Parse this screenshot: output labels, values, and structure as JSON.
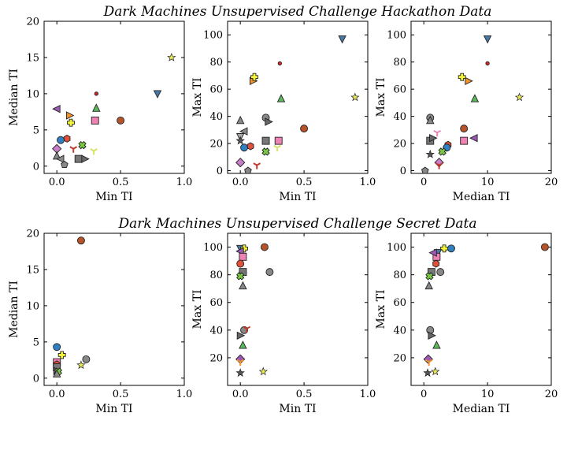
{
  "chart_data": [
    {
      "id": "hack-median-vs-min",
      "type": "scatter",
      "group_title": "Dark Machines Unsupervised Challenge Hackathon Data",
      "xlabel": "Min TI",
      "ylabel": "Median TI",
      "xlim": [
        -0.1,
        1.0
      ],
      "ylim": [
        -1,
        20
      ],
      "xticks": [
        0.0,
        0.5,
        1.0
      ],
      "xticklabels": [
        "0.0",
        "0.5",
        "1.0"
      ],
      "yticks": [
        0,
        5,
        10,
        15,
        20
      ],
      "yticklabels": [
        "0",
        "5",
        "10",
        "15",
        "20"
      ],
      "points": [
        {
          "x": 0.79,
          "y": 10.0,
          "marker": "tri-down",
          "color": "#4878a6"
        },
        {
          "x": 0.9,
          "y": 15.0,
          "marker": "star",
          "color": "#e8e85a"
        },
        {
          "x": 0.31,
          "y": 10.0,
          "marker": "circle-sm",
          "color": "#d62728"
        },
        {
          "x": 0.5,
          "y": 6.3,
          "marker": "circle",
          "color": "#b5532a"
        },
        {
          "x": 0.31,
          "y": 8.0,
          "marker": "tri-up",
          "color": "#5cb85c"
        },
        {
          "x": 0.3,
          "y": 6.3,
          "marker": "square",
          "color": "#ee82b4"
        },
        {
          "x": 0.0,
          "y": 7.9,
          "marker": "tri-left",
          "color": "#9b59b6"
        },
        {
          "x": 0.1,
          "y": 7.0,
          "marker": "tri-right",
          "color": "#f0932b"
        },
        {
          "x": 0.11,
          "y": 6.0,
          "marker": "plus",
          "color": "#f5f53c"
        },
        {
          "x": 0.08,
          "y": 3.8,
          "marker": "hexagon",
          "color": "#e0503a"
        },
        {
          "x": 0.03,
          "y": 3.6,
          "marker": "circle",
          "color": "#2f7fc1"
        },
        {
          "x": 0.0,
          "y": 2.4,
          "marker": "diamond",
          "color": "#c77dc7"
        },
        {
          "x": 0.2,
          "y": 2.9,
          "marker": "x",
          "color": "#7ac943"
        },
        {
          "x": 0.13,
          "y": 2.4,
          "marker": "tri-y",
          "color": "#c0392b"
        },
        {
          "x": 0.29,
          "y": 2.1,
          "marker": "tri-y",
          "color": "#d8e06a"
        },
        {
          "x": 0.0,
          "y": 1.4,
          "marker": "tri-up",
          "color": "#888888"
        },
        {
          "x": 0.03,
          "y": 1.0,
          "marker": "tri-left",
          "color": "#888888"
        },
        {
          "x": 0.17,
          "y": 1.0,
          "marker": "square",
          "color": "#777777"
        },
        {
          "x": 0.22,
          "y": 1.0,
          "marker": "tri-right",
          "color": "#666666"
        },
        {
          "x": 0.06,
          "y": 0.2,
          "marker": "pentagon",
          "color": "#888888"
        }
      ]
    },
    {
      "id": "hack-max-vs-min",
      "type": "scatter",
      "xlabel": "Min TI",
      "ylabel": "Max TI",
      "xlim": [
        -0.1,
        1.0
      ],
      "ylim": [
        -2,
        110
      ],
      "xticks": [
        0.0,
        0.5,
        1.0
      ],
      "xticklabels": [
        "0.0",
        "0.5",
        "1.0"
      ],
      "yticks": [
        0,
        20,
        40,
        60,
        80,
        100
      ],
      "yticklabels": [
        "0",
        "20",
        "40",
        "60",
        "80",
        "100"
      ],
      "points": [
        {
          "x": 0.8,
          "y": 97,
          "marker": "tri-down",
          "color": "#4878a6"
        },
        {
          "x": 0.9,
          "y": 54,
          "marker": "star",
          "color": "#e8e85a"
        },
        {
          "x": 0.31,
          "y": 79,
          "marker": "circle-sm",
          "color": "#d62728"
        },
        {
          "x": 0.5,
          "y": 31,
          "marker": "circle",
          "color": "#b5532a"
        },
        {
          "x": 0.32,
          "y": 53,
          "marker": "tri-up",
          "color": "#5cb85c"
        },
        {
          "x": 0.3,
          "y": 22,
          "marker": "square",
          "color": "#ee82b4"
        },
        {
          "x": 0.1,
          "y": 66,
          "marker": "tri-right",
          "color": "#f0932b"
        },
        {
          "x": 0.11,
          "y": 69,
          "marker": "plus",
          "color": "#f5f53c"
        },
        {
          "x": 0.2,
          "y": 39,
          "marker": "circle",
          "color": "#888888"
        },
        {
          "x": 0.2,
          "y": 22,
          "marker": "square",
          "color": "#777777"
        },
        {
          "x": 0.22,
          "y": 36,
          "marker": "tri-right",
          "color": "#666666"
        },
        {
          "x": 0.0,
          "y": 37,
          "marker": "tri-up",
          "color": "#888888"
        },
        {
          "x": 0.03,
          "y": 29,
          "marker": "tri-left",
          "color": "#888888"
        },
        {
          "x": 0.0,
          "y": 25,
          "marker": "tri-down",
          "color": "#aaaaaa"
        },
        {
          "x": 0.0,
          "y": 22,
          "marker": "star",
          "color": "#555555"
        },
        {
          "x": 0.08,
          "y": 18,
          "marker": "hexagon",
          "color": "#e0503a"
        },
        {
          "x": 0.03,
          "y": 17,
          "marker": "circle",
          "color": "#2f7fc1"
        },
        {
          "x": 0.2,
          "y": 14,
          "marker": "x",
          "color": "#7ac943"
        },
        {
          "x": 0.29,
          "y": 17,
          "marker": "tri-y",
          "color": "#d8e06a"
        },
        {
          "x": 0.0,
          "y": 6,
          "marker": "diamond",
          "color": "#c77dc7"
        },
        {
          "x": 0.13,
          "y": 4,
          "marker": "tri-y",
          "color": "#c0392b"
        },
        {
          "x": 0.06,
          "y": 0,
          "marker": "pentagon",
          "color": "#888888"
        }
      ]
    },
    {
      "id": "hack-max-vs-median",
      "type": "scatter",
      "xlabel": "Median TI",
      "ylabel": "Max TI",
      "xlim": [
        -2,
        20
      ],
      "ylim": [
        -2,
        110
      ],
      "xticks": [
        0,
        10,
        20
      ],
      "xticklabels": [
        "0",
        "10",
        "20"
      ],
      "yticks": [
        0,
        20,
        40,
        60,
        80,
        100
      ],
      "yticklabels": [
        "0",
        "20",
        "40",
        "60",
        "80",
        "100"
      ],
      "points": [
        {
          "x": 10.0,
          "y": 97,
          "marker": "tri-down",
          "color": "#4878a6"
        },
        {
          "x": 15.0,
          "y": 54,
          "marker": "star",
          "color": "#e8e85a"
        },
        {
          "x": 10.0,
          "y": 79,
          "marker": "circle-sm",
          "color": "#d62728"
        },
        {
          "x": 6.3,
          "y": 31,
          "marker": "circle",
          "color": "#b5532a"
        },
        {
          "x": 8.0,
          "y": 53,
          "marker": "tri-up",
          "color": "#5cb85c"
        },
        {
          "x": 6.3,
          "y": 22,
          "marker": "square",
          "color": "#ee82b4"
        },
        {
          "x": 7.9,
          "y": 24,
          "marker": "tri-left",
          "color": "#9b59b6"
        },
        {
          "x": 7.0,
          "y": 66,
          "marker": "tri-right",
          "color": "#f0932b"
        },
        {
          "x": 6.0,
          "y": 69,
          "marker": "plus",
          "color": "#f5f53c"
        },
        {
          "x": 3.8,
          "y": 19,
          "marker": "hexagon",
          "color": "#e0503a"
        },
        {
          "x": 3.6,
          "y": 17,
          "marker": "circle",
          "color": "#2f7fc1"
        },
        {
          "x": 1.0,
          "y": 39,
          "marker": "circle",
          "color": "#888888"
        },
        {
          "x": 1.0,
          "y": 37,
          "marker": "tri-up",
          "color": "#888888"
        },
        {
          "x": 1.0,
          "y": 22,
          "marker": "square",
          "color": "#777777"
        },
        {
          "x": 1.4,
          "y": 24,
          "marker": "tri-right",
          "color": "#666666"
        },
        {
          "x": 2.1,
          "y": 28,
          "marker": "tri-y",
          "color": "#ee82b4"
        },
        {
          "x": 1.0,
          "y": 12,
          "marker": "star",
          "color": "#555555"
        },
        {
          "x": 2.4,
          "y": 6,
          "marker": "diamond",
          "color": "#c77dc7"
        },
        {
          "x": 2.4,
          "y": 4,
          "marker": "tri-y",
          "color": "#c0392b"
        },
        {
          "x": 2.9,
          "y": 14,
          "marker": "x",
          "color": "#7ac943"
        },
        {
          "x": 0.2,
          "y": 0,
          "marker": "pentagon",
          "color": "#888888"
        }
      ]
    },
    {
      "id": "secret-median-vs-min",
      "type": "scatter",
      "group_title": "Dark Machines Unsupervised Challenge Secret Data",
      "xlabel": "Min TI",
      "ylabel": "Median TI",
      "xlim": [
        -0.1,
        1.0
      ],
      "ylim": [
        -1,
        20
      ],
      "xticks": [
        0.0,
        0.5,
        1.0
      ],
      "xticklabels": [
        "0.0",
        "0.5",
        "1.0"
      ],
      "yticks": [
        0,
        5,
        10,
        15,
        20
      ],
      "yticklabels": [
        "0",
        "5",
        "10",
        "15",
        "20"
      ],
      "points": [
        {
          "x": 0.19,
          "y": 19.0,
          "marker": "circle",
          "color": "#b5532a"
        },
        {
          "x": 0.0,
          "y": 4.3,
          "marker": "circle",
          "color": "#2f7fc1"
        },
        {
          "x": 0.04,
          "y": 3.2,
          "marker": "plus",
          "color": "#f5f53c"
        },
        {
          "x": 0.23,
          "y": 2.6,
          "marker": "circle",
          "color": "#888888"
        },
        {
          "x": 0.19,
          "y": 1.8,
          "marker": "star",
          "color": "#e8e85a"
        },
        {
          "x": 0.0,
          "y": 2.2,
          "marker": "square",
          "color": "#ee82b4"
        },
        {
          "x": 0.0,
          "y": 1.9,
          "marker": "hexagon",
          "color": "#e0503a"
        },
        {
          "x": 0.0,
          "y": 1.5,
          "marker": "square",
          "color": "#777777"
        },
        {
          "x": 0.0,
          "y": 1.0,
          "marker": "tri-right",
          "color": "#666666"
        },
        {
          "x": 0.01,
          "y": 0.9,
          "marker": "x",
          "color": "#7ac943"
        },
        {
          "x": 0.0,
          "y": 0.6,
          "marker": "tri-up",
          "color": "#888888"
        }
      ]
    },
    {
      "id": "secret-max-vs-min",
      "type": "scatter",
      "xlabel": "Min TI",
      "ylabel": "Max TI",
      "xlim": [
        -0.1,
        1.0
      ],
      "ylim": [
        0,
        110
      ],
      "xticks": [
        0.0,
        0.5,
        1.0
      ],
      "xticklabels": [
        "0.0",
        "0.5",
        "1.0"
      ],
      "yticks": [
        20,
        40,
        60,
        80,
        100
      ],
      "yticklabels": [
        "20",
        "40",
        "60",
        "80",
        "100"
      ],
      "points": [
        {
          "x": 0.0,
          "y": 99,
          "marker": "tri-down",
          "color": "#4878a6"
        },
        {
          "x": 0.03,
          "y": 99,
          "marker": "plus",
          "color": "#f5f53c"
        },
        {
          "x": 0.0,
          "y": 97,
          "marker": "tri-left",
          "color": "#9b59b6"
        },
        {
          "x": 0.02,
          "y": 93,
          "marker": "square",
          "color": "#ee82b4"
        },
        {
          "x": 0.0,
          "y": 88,
          "marker": "circle",
          "color": "#e0503a"
        },
        {
          "x": 0.19,
          "y": 100,
          "marker": "circle",
          "color": "#b5532a"
        },
        {
          "x": 0.02,
          "y": 82,
          "marker": "square",
          "color": "#777777"
        },
        {
          "x": 0.23,
          "y": 82,
          "marker": "circle",
          "color": "#888888"
        },
        {
          "x": 0.0,
          "y": 79,
          "marker": "x",
          "color": "#7ac943"
        },
        {
          "x": 0.02,
          "y": 72,
          "marker": "tri-up",
          "color": "#888888"
        },
        {
          "x": 0.03,
          "y": 40,
          "marker": "circle",
          "color": "#888888"
        },
        {
          "x": 0.05,
          "y": 41,
          "marker": "tri-y",
          "color": "#c0392b"
        },
        {
          "x": 0.0,
          "y": 36,
          "marker": "tri-right",
          "color": "#666666"
        },
        {
          "x": 0.02,
          "y": 29,
          "marker": "tri-up",
          "color": "#5cb85c"
        },
        {
          "x": 0.0,
          "y": 19,
          "marker": "diamond",
          "color": "#9b59b6"
        },
        {
          "x": 0.0,
          "y": 17,
          "marker": "tri-y",
          "color": "#f0932b"
        },
        {
          "x": 0.0,
          "y": 9,
          "marker": "star",
          "color": "#555555"
        },
        {
          "x": 0.18,
          "y": 10,
          "marker": "star",
          "color": "#e8e85a"
        }
      ]
    },
    {
      "id": "secret-max-vs-median",
      "type": "scatter",
      "xlabel": "Median TI",
      "ylabel": "Max TI",
      "xlim": [
        -2,
        20
      ],
      "ylim": [
        0,
        110
      ],
      "xticks": [
        0,
        10,
        20
      ],
      "xticklabels": [
        "0",
        "10",
        "20"
      ],
      "yticks": [
        20,
        40,
        60,
        80,
        100
      ],
      "yticklabels": [
        "20",
        "40",
        "60",
        "80",
        "100"
      ],
      "points": [
        {
          "x": 19.0,
          "y": 100,
          "marker": "circle",
          "color": "#b5532a"
        },
        {
          "x": 4.3,
          "y": 99,
          "marker": "circle",
          "color": "#2f7fc1"
        },
        {
          "x": 3.2,
          "y": 99,
          "marker": "plus",
          "color": "#f5f53c"
        },
        {
          "x": 2.2,
          "y": 96,
          "marker": "tri-down",
          "color": "#4878a6"
        },
        {
          "x": 2.0,
          "y": 93,
          "marker": "square",
          "color": "#ee82b4"
        },
        {
          "x": 1.9,
          "y": 88,
          "marker": "hexagon",
          "color": "#e0503a"
        },
        {
          "x": 1.5,
          "y": 96,
          "marker": "tri-left",
          "color": "#9b59b6"
        },
        {
          "x": 1.2,
          "y": 82,
          "marker": "square",
          "color": "#777777"
        },
        {
          "x": 2.6,
          "y": 82,
          "marker": "circle",
          "color": "#888888"
        },
        {
          "x": 0.9,
          "y": 79,
          "marker": "x",
          "color": "#7ac943"
        },
        {
          "x": 0.8,
          "y": 72,
          "marker": "tri-up",
          "color": "#888888"
        },
        {
          "x": 1.0,
          "y": 40,
          "marker": "circle",
          "color": "#888888"
        },
        {
          "x": 1.2,
          "y": 36,
          "marker": "tri-right",
          "color": "#666666"
        },
        {
          "x": 2.0,
          "y": 29,
          "marker": "tri-up",
          "color": "#5cb85c"
        },
        {
          "x": 0.7,
          "y": 19,
          "marker": "diamond",
          "color": "#9b59b6"
        },
        {
          "x": 0.8,
          "y": 17,
          "marker": "tri-y",
          "color": "#f0932b"
        },
        {
          "x": 0.6,
          "y": 9,
          "marker": "star",
          "color": "#555555"
        },
        {
          "x": 1.8,
          "y": 10,
          "marker": "star",
          "color": "#e8e85a"
        }
      ]
    }
  ]
}
